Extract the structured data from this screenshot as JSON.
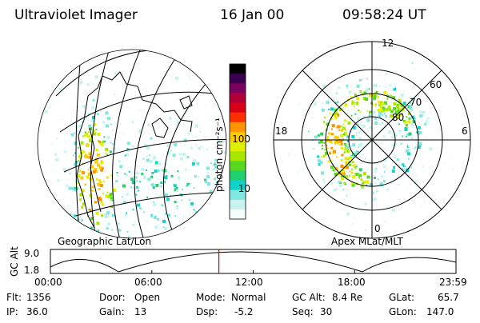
{
  "header": {
    "instrument": "Ultraviolet Imager",
    "date": "16 Jan 00",
    "time": "09:58:24 UT"
  },
  "left_panel": {
    "caption": "Geographic Lat/Lon"
  },
  "right_panel": {
    "caption": "Apex MLat/MLT",
    "mlt_labels": [
      "12",
      "18",
      "6",
      "0"
    ],
    "mlat_labels": [
      "60",
      "70",
      "80"
    ]
  },
  "colorbar": {
    "unit_label": "photon cm⁻²s⁻¹",
    "tick_labels": [
      "100",
      "10"
    ],
    "colors": [
      "#000000",
      "#3a0052",
      "#7a0060",
      "#b0003a",
      "#d80018",
      "#ff3000",
      "#ff9400",
      "#ffcc00",
      "#dff000",
      "#a9e600",
      "#58d820",
      "#20d070",
      "#10d2c8",
      "#80e6e0",
      "#c8f2ee",
      "#f4fcfc"
    ]
  },
  "altitude_plot": {
    "ylabel": "GC Alt",
    "yticks": [
      "9.0",
      "1.8"
    ],
    "xticks": [
      "00:00",
      "06:00",
      "12:00",
      "18:00",
      "23:59"
    ],
    "current_time_hours": 9.97
  },
  "status": {
    "row1": [
      {
        "label": "Flt:",
        "value": "1356"
      },
      {
        "label": "Door:",
        "value": "Open"
      },
      {
        "label": "Mode:",
        "value": "Normal"
      },
      {
        "label": "GC Alt:",
        "value": "8.4 Re"
      },
      {
        "label": "GLat:",
        "value": "65.7"
      }
    ],
    "row2": [
      {
        "label": "IP:",
        "value": "36.0"
      },
      {
        "label": "Gain:",
        "value": "13"
      },
      {
        "label": "Dsp:",
        "value": "-5.2"
      },
      {
        "label": "Seq:",
        "value": "30"
      },
      {
        "label": "GLon:",
        "value": "147.0"
      }
    ]
  }
}
